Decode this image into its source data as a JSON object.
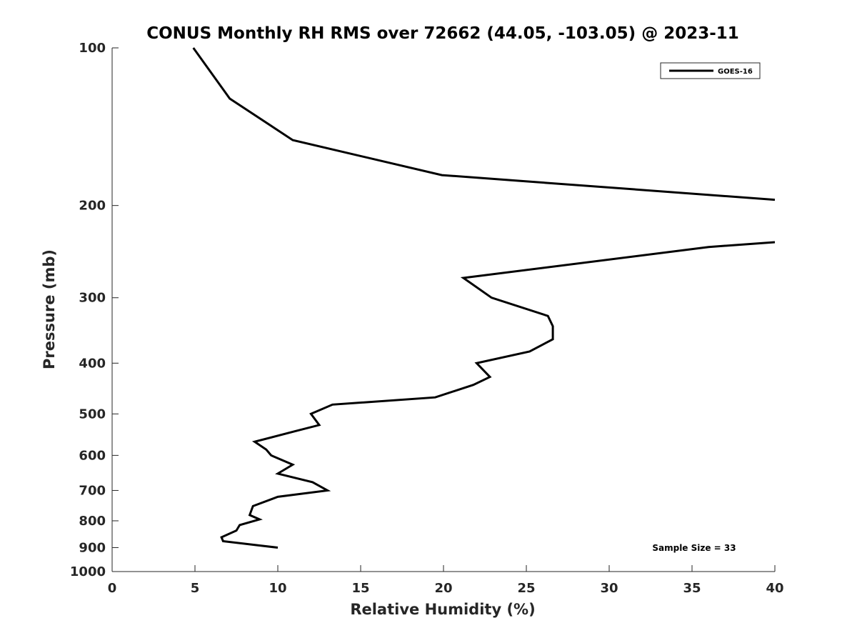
{
  "chart_data": {
    "type": "line",
    "title": "CONUS Monthly RH RMS over 72662 (44.05, -103.05) @ 2023-11",
    "xlabel": "Relative Humidity (%)",
    "ylabel": "Pressure (mb)",
    "xlim": [
      0,
      40
    ],
    "ylim": [
      100,
      1000
    ],
    "y_scale": "log",
    "y_reversed": true,
    "x_ticks": [
      0,
      5,
      10,
      15,
      20,
      25,
      30,
      35,
      40
    ],
    "y_ticks": [
      100,
      200,
      300,
      400,
      500,
      600,
      700,
      800,
      900,
      1000
    ],
    "grid": false,
    "legend_position": "top-right",
    "annotation": "Sample Size = 33",
    "series": [
      {
        "name": "GOES-16",
        "color": "#000000",
        "segments": [
          [
            {
              "x": 4.9,
              "p": 100
            },
            {
              "x": 7.1,
              "p": 125
            },
            {
              "x": 10.9,
              "p": 150
            },
            {
              "x": 19.9,
              "p": 175
            },
            {
              "x": 40.0,
              "p": 195
            }
          ],
          [
            {
              "x": 40.0,
              "p": 235
            },
            {
              "x": 36.0,
              "p": 240
            },
            {
              "x": 21.2,
              "p": 275
            },
            {
              "x": 22.9,
              "p": 300
            },
            {
              "x": 26.3,
              "p": 325
            },
            {
              "x": 26.6,
              "p": 340
            },
            {
              "x": 26.6,
              "p": 360
            },
            {
              "x": 25.2,
              "p": 380
            },
            {
              "x": 22.0,
              "p": 400
            },
            {
              "x": 22.8,
              "p": 425
            },
            {
              "x": 21.8,
              "p": 440
            },
            {
              "x": 19.5,
              "p": 465
            },
            {
              "x": 13.3,
              "p": 480
            },
            {
              "x": 12.0,
              "p": 500
            },
            {
              "x": 12.5,
              "p": 525
            },
            {
              "x": 11.0,
              "p": 540
            },
            {
              "x": 8.6,
              "p": 565
            },
            {
              "x": 9.3,
              "p": 585
            },
            {
              "x": 9.6,
              "p": 600
            },
            {
              "x": 10.9,
              "p": 625
            },
            {
              "x": 10.0,
              "p": 650
            },
            {
              "x": 12.1,
              "p": 675
            },
            {
              "x": 13.0,
              "p": 700
            },
            {
              "x": 10.0,
              "p": 720
            },
            {
              "x": 8.5,
              "p": 750
            },
            {
              "x": 8.3,
              "p": 780
            },
            {
              "x": 8.9,
              "p": 795
            },
            {
              "x": 7.7,
              "p": 815
            },
            {
              "x": 7.5,
              "p": 835
            },
            {
              "x": 6.6,
              "p": 860
            },
            {
              "x": 6.7,
              "p": 875
            },
            {
              "x": 10.0,
              "p": 900
            }
          ]
        ]
      }
    ]
  }
}
